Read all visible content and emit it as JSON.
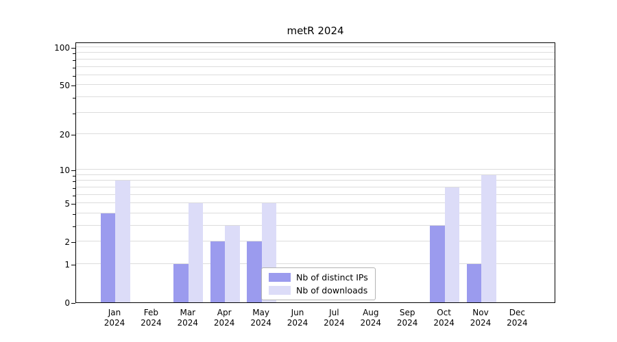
{
  "title": "metR 2024",
  "chart_data": {
    "type": "bar",
    "title": "metR 2024",
    "categories": [
      "Jan 2024",
      "Feb 2024",
      "Mar 2024",
      "Apr 2024",
      "May 2024",
      "Jun 2024",
      "Jul 2024",
      "Aug 2024",
      "Sep 2024",
      "Oct 2024",
      "Nov 2024",
      "Dec 2024"
    ],
    "series": [
      {
        "name": "Nb of distinct IPs",
        "color": "#9b9bee",
        "values": [
          4,
          0,
          1,
          2,
          2,
          0,
          0,
          0,
          0,
          3,
          1,
          0
        ]
      },
      {
        "name": "Nb of downloads",
        "color": "#dcdcf8",
        "values": [
          8,
          0,
          5,
          3,
          5,
          0,
          0,
          0,
          0,
          7,
          9,
          0
        ]
      }
    ],
    "y_ticks": [
      0,
      1,
      2,
      5,
      10,
      20,
      50,
      100
    ],
    "y_scale": "log1p",
    "ylim": [
      0,
      100
    ],
    "grid": true,
    "gridline_values": [
      1,
      2,
      3,
      4,
      5,
      6,
      7,
      8,
      9,
      10,
      20,
      30,
      40,
      50,
      60,
      70,
      80,
      90,
      100
    ],
    "legend_position": "inside-bottom-center"
  },
  "colors": {
    "grid": "#dcdcdc",
    "axis": "#000000",
    "background": "#ffffff",
    "legend_border": "#b3b3b3"
  }
}
